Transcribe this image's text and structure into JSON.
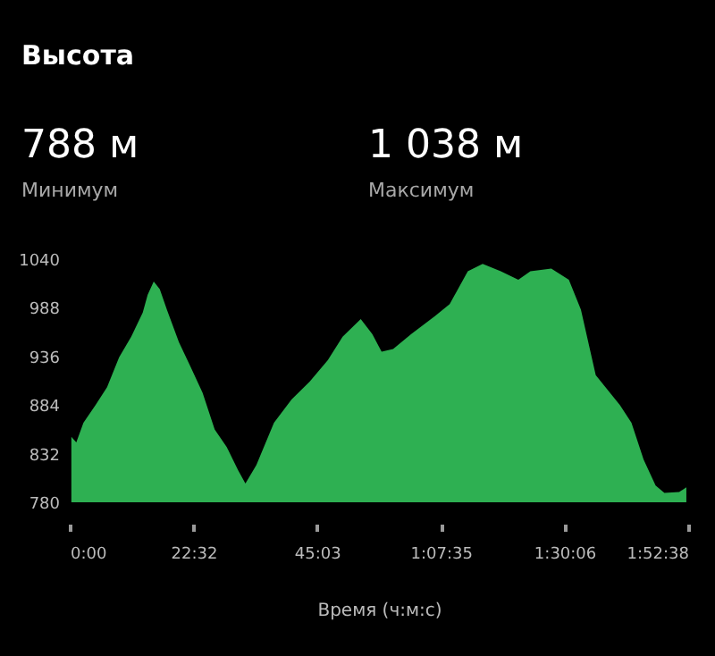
{
  "chart_data": {
    "type": "area",
    "title": "Высота",
    "xlabel": "Время (ч:м:с)",
    "annotations": [
      "788 м",
      "Минимум",
      "1 038 м",
      "Максимум"
    ],
    "x": [
      0.3,
      1.2,
      2.5,
      4.7,
      6.8,
      9.0,
      11.2,
      13.3,
      14.2,
      15.3,
      16.4,
      17.7,
      19.9,
      22.0,
      24.2,
      26.4,
      28.6,
      30.7,
      32.0,
      34.0,
      37.2,
      40.4,
      43.7,
      47.0,
      49.7,
      53.0,
      55.1,
      56.8,
      58.9,
      62.2,
      66.5,
      69.2,
      72.5,
      75.2,
      78.5,
      81.7,
      83.9,
      87.7,
      90.9,
      93.1,
      95.8,
      100.2,
      102.3,
      104.5,
      106.7,
      108.3,
      111.0,
      112.3
    ],
    "series": [
      {
        "color": "#2eb052",
        "values": [
          850,
          844,
          865,
          884,
          903,
          935,
          957,
          983,
          1002,
          1016,
          1008,
          986,
          951,
          925,
          897,
          858,
          839,
          814,
          800,
          820,
          865,
          890,
          909,
          932,
          957,
          976,
          960,
          941,
          944,
          960,
          979,
          992,
          1027,
          1035,
          1027,
          1018,
          1027,
          1030,
          1018,
          986,
          916,
          884,
          865,
          826,
          798,
          790,
          791,
          796
        ]
      }
    ],
    "xlim": [
      0,
      112.633
    ],
    "xticks": [
      {
        "value": 0,
        "label": "0:00"
      },
      {
        "value": 22.533,
        "label": "22:32"
      },
      {
        "value": 45.05,
        "label": "45:03"
      },
      {
        "value": 67.583,
        "label": "1:07:35"
      },
      {
        "value": 90.1,
        "label": "1:30:06"
      },
      {
        "value": 112.633,
        "label": "1:52:38"
      }
    ],
    "ylim": [
      780,
      1040
    ],
    "yticks": [
      780,
      832,
      884,
      936,
      988,
      1040
    ],
    "grid": false
  }
}
